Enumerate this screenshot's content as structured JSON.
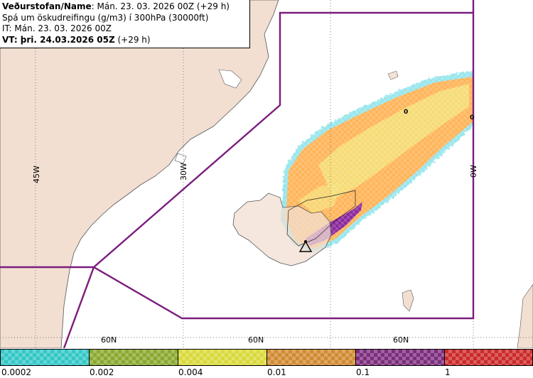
{
  "header": {
    "line1_bold": "Veðurstofan/Name",
    "line1_rest": ": Mán. 23. 03. 2026 00Z (+29 h)",
    "line2": "Spá um öskudreifingu (g/m3) í 300hPa (30000ft)",
    "line3": "IT: Mán. 23. 03. 2026 00Z",
    "line4_bold": "VT: þri. 24.03.2026 05Z",
    "line4_rest": " (+29 h)"
  },
  "map": {
    "colors": {
      "land": "#f2dfd2",
      "sea": "#ffffff",
      "boundary": "#7b1c7d",
      "coast": "#555555"
    },
    "longitude_labels": [
      "45W",
      "30W",
      "0W"
    ],
    "latitude_labels": [
      "60N",
      "60N",
      "60N"
    ],
    "contour_labels": [
      "0",
      "0"
    ],
    "volcano_marker": "triangle-icon",
    "ash_colors": {
      "low": "#ffb55a",
      "mid": "#f5e27a",
      "high": "#8c2a9e",
      "edge": "#7fe0e8"
    }
  },
  "legend": {
    "levels": [
      {
        "label": "0.0002",
        "color": "#33c7c7"
      },
      {
        "label": "0.002",
        "color": "#8aa82e"
      },
      {
        "label": "0.004",
        "color": "#d9d93a"
      },
      {
        "label": "0.01",
        "color": "#d18a30"
      },
      {
        "label": "0.1",
        "color": "#7d2d7d"
      },
      {
        "label": "1",
        "color": "#cc2a2a"
      }
    ]
  }
}
